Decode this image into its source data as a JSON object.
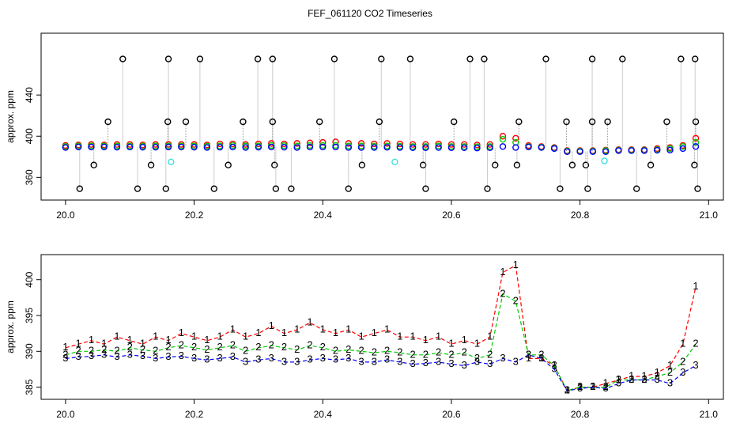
{
  "chart_data": [
    {
      "type": "scatter",
      "title": "FEF_061120  CO2 Timeseries",
      "y_label": "approx. ppm",
      "xlim": [
        19.962,
        21.023
      ],
      "ylim": [
        338,
        500
      ],
      "xticks": [
        {
          "value": 20,
          "label": "20.0"
        },
        20.2,
        20.4,
        20.6,
        20.8,
        {
          "value": 21,
          "label": "21.0"
        }
      ],
      "yticks": [
        360,
        400,
        440
      ],
      "x": [
        20.0,
        20.02,
        20.04,
        20.06,
        20.08,
        20.1,
        20.12,
        20.14,
        20.16,
        20.18,
        20.2,
        20.22,
        20.24,
        20.26,
        20.28,
        20.3,
        20.32,
        20.34,
        20.36,
        20.38,
        20.4,
        20.42,
        20.44,
        20.46,
        20.48,
        20.5,
        20.52,
        20.54,
        20.56,
        20.58,
        20.6,
        20.62,
        20.64,
        20.66,
        20.68,
        20.7,
        20.72,
        20.74,
        20.76,
        20.78,
        20.8,
        20.82,
        20.84,
        20.86,
        20.88,
        20.9,
        20.92,
        20.94,
        20.96,
        20.98
      ],
      "series": [
        {
          "color": "#000000",
          "stem_color": "#9a9a9a",
          "x": [
            20.089,
            20.16,
            20.209,
            20.299,
            20.322,
            20.418,
            20.491,
            20.536,
            20.629,
            20.651,
            20.747,
            20.819,
            20.866,
            20.957,
            20.979,
            20.066,
            20.159,
            20.187,
            20.276,
            20.322,
            20.395,
            20.488,
            20.604,
            20.705,
            20.779,
            20.819,
            20.843,
            20.935,
            20.98,
            20.044,
            20.133,
            20.253,
            20.325,
            20.461,
            20.556,
            20.668,
            20.702,
            20.788,
            20.809,
            20.91,
            20.978,
            20.022,
            20.112,
            20.156,
            20.231,
            20.327,
            20.351,
            20.44,
            20.56,
            20.656,
            20.769,
            20.812,
            20.888,
            20.983
          ],
          "values": [
            475,
            475,
            475,
            475,
            475,
            475,
            475,
            475,
            475,
            475,
            475,
            475,
            475,
            475,
            475,
            414,
            414,
            414,
            414,
            414,
            414,
            414,
            414,
            414,
            414,
            414,
            414,
            414,
            414,
            372,
            372,
            372,
            372,
            372,
            372,
            372,
            372,
            372,
            372,
            372,
            372,
            349,
            349,
            349,
            349,
            349,
            349,
            349,
            349,
            349,
            349,
            349,
            349,
            349
          ]
        },
        {
          "color": "#ff0000",
          "values": [
            391,
            391.5,
            392,
            391.5,
            392,
            392,
            391.5,
            392,
            392,
            392,
            392,
            391.5,
            392.5,
            392.5,
            392,
            392.5,
            393,
            392.5,
            393,
            393.5,
            394,
            394.5,
            393,
            393,
            392.5,
            393,
            392.5,
            392,
            392,
            392.5,
            392,
            392,
            391.5,
            392,
            400,
            398,
            391,
            390,
            389,
            386,
            386,
            386,
            386.5,
            387,
            387,
            387,
            388,
            389,
            391,
            398
          ]
        },
        {
          "color": "#00cd00",
          "values": [
            390,
            390.5,
            390.5,
            390.5,
            390.5,
            390.5,
            390.3,
            390.5,
            390.5,
            390.5,
            390.5,
            390.3,
            390.5,
            391,
            390.5,
            390.5,
            391,
            390.8,
            390.5,
            391,
            391,
            391,
            390.5,
            390.5,
            390.3,
            390.5,
            390.2,
            390,
            390,
            390.5,
            390,
            390,
            389.8,
            390,
            397,
            394,
            390,
            389.5,
            388.5,
            385.5,
            385.5,
            385.5,
            386,
            386.5,
            386.5,
            386.5,
            387,
            388,
            390,
            394
          ]
        },
        {
          "color": "#0000ff",
          "values": [
            389,
            389.5,
            389.5,
            389.5,
            389.3,
            389.5,
            389.3,
            389.3,
            389.5,
            389.5,
            389.3,
            389,
            389.3,
            389.5,
            389,
            389.3,
            389.5,
            389.3,
            389,
            389.5,
            389.5,
            389.5,
            389,
            389,
            389,
            389.2,
            389,
            388.8,
            388.8,
            389,
            388.8,
            388.8,
            388.5,
            388.8,
            390,
            389,
            389.5,
            389,
            388,
            385,
            385,
            385,
            385,
            386,
            386,
            386,
            386.3,
            386.5,
            388,
            390
          ]
        },
        {
          "color": "#40e0e0",
          "x": [
            20.164,
            20.512,
            20.838
          ],
          "values": [
            375,
            375,
            376
          ]
        }
      ]
    },
    {
      "type": "line",
      "y_label": "approx. ppm",
      "xlim": [
        19.962,
        21.023
      ],
      "ylim": [
        383.3,
        403.5
      ],
      "xticks": [
        {
          "value": 20,
          "label": "20.0"
        },
        20.2,
        20.4,
        20.6,
        20.8,
        {
          "value": 21,
          "label": "21.0"
        }
      ],
      "yticks": [
        385,
        390,
        395,
        400
      ],
      "x": [
        20.0,
        20.02,
        20.04,
        20.06,
        20.08,
        20.1,
        20.12,
        20.14,
        20.16,
        20.18,
        20.2,
        20.22,
        20.24,
        20.26,
        20.28,
        20.3,
        20.32,
        20.34,
        20.36,
        20.38,
        20.4,
        20.42,
        20.44,
        20.46,
        20.48,
        20.5,
        20.52,
        20.54,
        20.56,
        20.58,
        20.6,
        20.62,
        20.64,
        20.66,
        20.68,
        20.7,
        20.72,
        20.74,
        20.76,
        20.78,
        20.8,
        20.82,
        20.84,
        20.86,
        20.88,
        20.9,
        20.92,
        20.94,
        20.96,
        20.98
      ],
      "series": [
        {
          "marker": "1",
          "color": "#ff0000",
          "values": [
            390.5,
            391,
            391.5,
            391,
            392,
            391.5,
            391,
            392,
            391.5,
            392.5,
            392,
            391.5,
            392,
            393,
            392,
            392.5,
            393.5,
            392.5,
            393,
            394,
            393,
            392.5,
            393,
            392,
            392.5,
            393,
            392,
            392,
            391.5,
            392,
            391,
            391.5,
            391,
            392,
            401,
            402,
            389,
            389,
            388,
            384.5,
            385,
            385,
            385.5,
            386,
            386.5,
            386.5,
            387,
            388,
            391,
            399
          ]
        },
        {
          "marker": "2",
          "color": "#00cd00",
          "values": [
            389.5,
            390,
            390,
            390.2,
            390,
            390.5,
            390.2,
            390,
            390.5,
            390.8,
            390.5,
            390.2,
            390.5,
            390.8,
            390,
            390.5,
            390.8,
            390.5,
            390.2,
            390.8,
            390.5,
            390,
            390.2,
            390,
            389.8,
            390,
            389.8,
            389.5,
            389.5,
            389.8,
            389.5,
            389.8,
            389,
            389.5,
            398,
            397,
            389.5,
            389.5,
            388,
            384.5,
            385,
            385,
            385,
            386,
            386,
            386,
            386.5,
            387,
            388.5,
            391
          ]
        },
        {
          "marker": "3",
          "color": "#0000ff",
          "values": [
            389,
            389.2,
            389.3,
            389.5,
            389.2,
            389.5,
            389.3,
            389,
            389.2,
            389.3,
            389,
            388.8,
            389,
            389.2,
            388.5,
            388.8,
            389,
            388.5,
            388.5,
            388.8,
            389,
            388.8,
            389,
            388.5,
            388.5,
            388.8,
            388.5,
            388.2,
            388.3,
            388.5,
            388.2,
            388,
            388.5,
            388.2,
            389,
            388.5,
            389.5,
            389,
            387.5,
            384.5,
            384.8,
            385,
            384.8,
            385.5,
            386,
            386,
            386,
            385.5,
            387,
            388
          ]
        }
      ]
    }
  ]
}
